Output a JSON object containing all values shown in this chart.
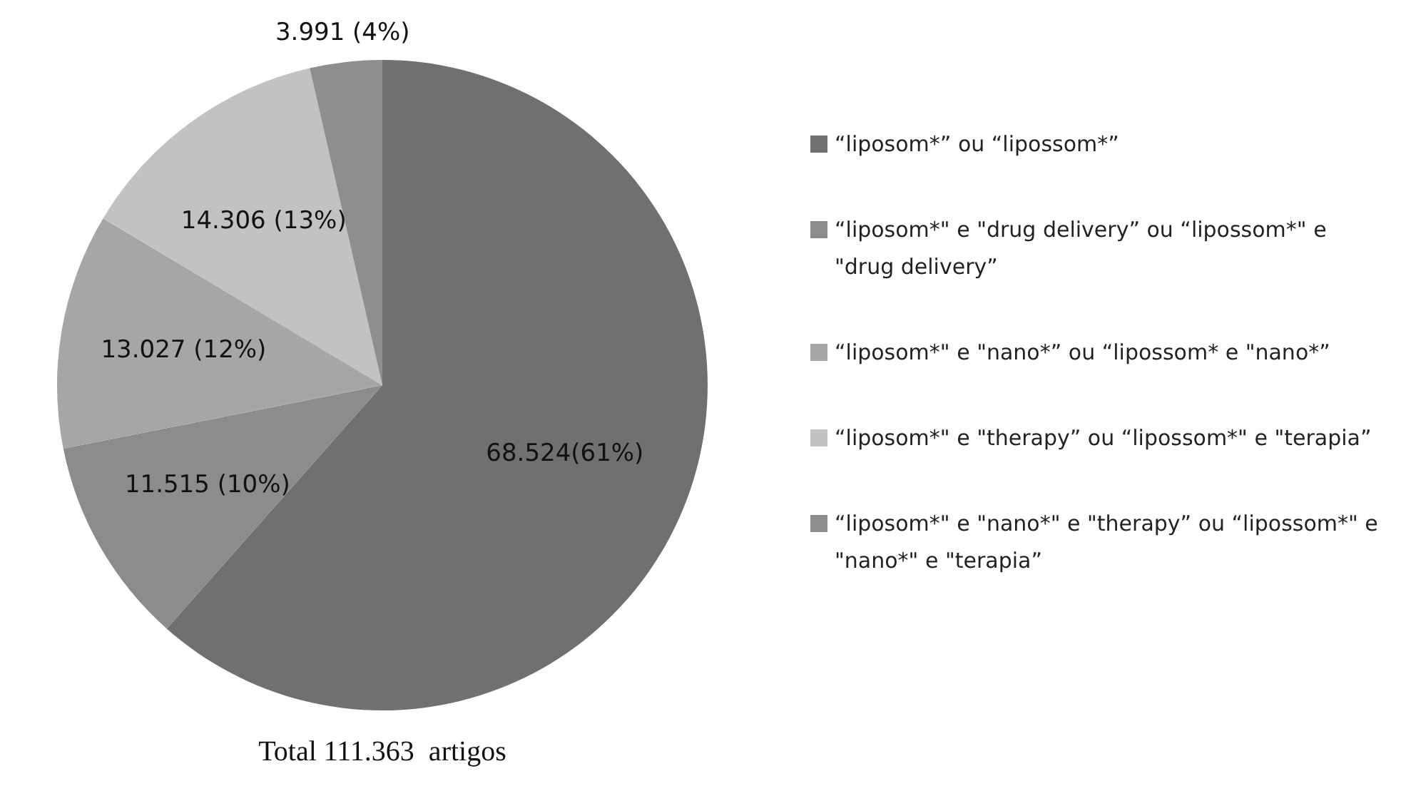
{
  "chart_data": {
    "type": "pie",
    "categories": [
      "“liposom*” ou “lipossom*”",
      "“liposom*\" e \"drug delivery” ou “lipossom*\" e \"drug delivery”",
      "“liposom*\" e \"nano*” ou “lipossom* e \"nano*”",
      "“liposom*\" e \"therapy” ou “lipossom*\" e \"terapia”",
      "“liposom*\" e \"nano*\" e \"therapy” ou “lipossom*\" e \"nano*\" e \"terapia”"
    ],
    "values": [
      68524,
      11515,
      13027,
      14306,
      3991
    ],
    "value_labels": [
      "68.524(61%)",
      "11.515 (10%)",
      "13.027 (12%)",
      "14.306 (13%)",
      "3.991 (4%)"
    ],
    "colors": [
      "#707070",
      "#8c8c8c",
      "#a6a6a6",
      "#c2c2c2",
      "#8e8e8e"
    ],
    "legend": "right",
    "annotations": [
      "Total 111.363  artigos"
    ]
  }
}
